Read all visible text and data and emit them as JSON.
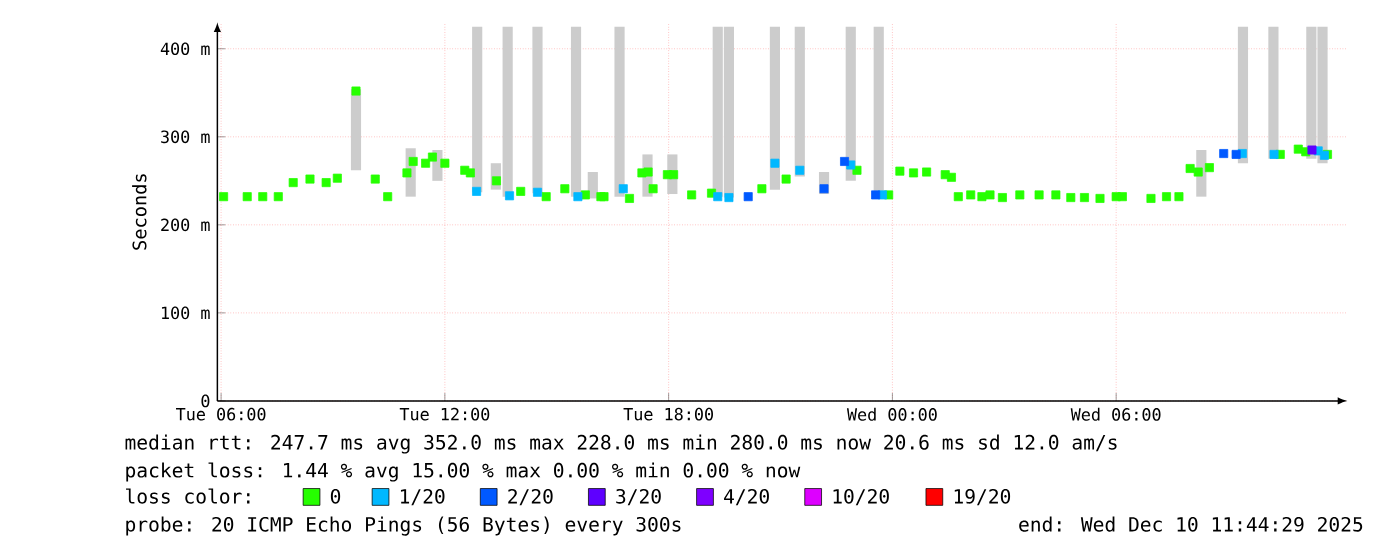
{
  "chart_data": {
    "type": "scatter",
    "ylabel": "Seconds",
    "legend_title": "loss color:",
    "annotations": [
      "median rtt:  247.7 ms avg  352.0 ms max  228.0 ms min  280.0 ms now  20.6 ms sd  12.0   am/s",
      "packet loss: 1.44 % avg  15.00 % max  0.00 % min  0.00 % now",
      "probe:       20 ICMP Echo Pings (56 Bytes) every 300s",
      "end: Wed Dec 10 11:44:29 2025"
    ],
    "xlim": [
      "2025-12-09T05:54",
      "2025-12-10T12:12"
    ],
    "ylim": [
      0,
      430
    ],
    "xticks": [
      {
        "value": "2025-12-09T06:00",
        "label": "Tue 06:00"
      },
      {
        "value": "2025-12-09T12:00",
        "label": "Tue 12:00"
      },
      {
        "value": "2025-12-09T18:00",
        "label": "Tue 18:00"
      },
      {
        "value": "2025-12-10T00:00",
        "label": "Wed 00:00"
      },
      {
        "value": "2025-12-10T06:00",
        "label": "Wed 06:00"
      }
    ],
    "yticks": [
      0,
      {
        "value": 100,
        "label": "100 m"
      },
      {
        "value": 200,
        "label": "200 m"
      },
      {
        "value": 300,
        "label": "300 m"
      },
      {
        "value": 400,
        "label": "400 m"
      }
    ],
    "grid": true,
    "legend": "bottom",
    "marker": "square",
    "series": [
      {
        "type": "bar",
        "color": "#cccccc",
        "x": [
          "2025-12-09T09:37",
          "2025-12-09T11:05",
          "2025-12-09T11:48",
          "2025-12-09T12:52",
          "2025-12-09T13:22",
          "2025-12-09T13:41",
          "2025-12-09T14:29",
          "2025-12-09T15:31",
          "2025-12-09T15:58",
          "2025-12-09T16:41",
          "2025-12-09T17:26",
          "2025-12-09T18:06",
          "2025-12-09T19:19",
          "2025-12-09T19:37",
          "2025-12-09T20:51",
          "2025-12-09T21:31",
          "2025-12-09T22:10",
          "2025-12-09T22:53",
          "2025-12-09T23:38",
          "2025-12-10T08:17",
          "2025-12-10T09:24",
          "2025-12-10T10:13",
          "2025-12-10T11:14",
          "2025-12-10T11:32"
        ],
        "base": [
          262,
          232,
          250,
          237,
          240,
          232,
          236,
          232,
          230,
          232,
          232,
          235,
          232,
          231,
          240,
          255,
          235,
          250,
          232,
          232,
          270,
          275,
          275,
          270
        ],
        "values": [
          92,
          55,
          35,
          188,
          30,
          193,
          189,
          193,
          30,
          193,
          48,
          45,
          193,
          194,
          185,
          170,
          25,
          175,
          193,
          53,
          155,
          150,
          150,
          155
        ]
      },
      {
        "name": "0",
        "color": "#26ff00",
        "x": [
          "2025-12-09T06:04",
          "2025-12-09T06:42",
          "2025-12-09T07:07",
          "2025-12-09T07:32",
          "2025-12-09T07:56",
          "2025-12-09T08:23",
          "2025-12-09T08:49",
          "2025-12-09T09:07",
          "2025-12-09T09:37",
          "2025-12-09T10:08",
          "2025-12-09T10:28",
          "2025-12-09T10:59",
          "2025-12-09T11:09",
          "2025-12-09T11:29",
          "2025-12-09T11:40",
          "2025-12-09T12:00",
          "2025-12-09T12:32",
          "2025-12-09T12:41",
          "2025-12-09T13:23",
          "2025-12-09T14:02",
          "2025-12-09T14:43",
          "2025-12-09T15:13",
          "2025-12-09T15:46",
          "2025-12-09T16:11",
          "2025-12-09T16:16",
          "2025-12-09T16:57",
          "2025-12-09T17:17",
          "2025-12-09T17:27",
          "2025-12-09T17:35",
          "2025-12-09T17:58",
          "2025-12-09T18:08",
          "2025-12-09T18:37",
          "2025-12-09T19:09",
          "2025-12-09T20:30",
          "2025-12-09T21:09",
          "2025-12-09T23:03",
          "2025-12-09T23:54",
          "2025-12-10T00:12",
          "2025-12-10T00:34",
          "2025-12-10T00:55",
          "2025-12-10T01:25",
          "2025-12-10T01:35",
          "2025-12-10T01:46",
          "2025-12-10T02:06",
          "2025-12-10T02:24",
          "2025-12-10T02:37",
          "2025-12-10T02:57",
          "2025-12-10T03:25",
          "2025-12-10T03:56",
          "2025-12-10T04:23",
          "2025-12-10T04:47",
          "2025-12-10T05:09",
          "2025-12-10T05:34",
          "2025-12-10T06:00",
          "2025-12-10T06:10",
          "2025-12-10T06:56",
          "2025-12-10T07:21",
          "2025-12-10T07:41",
          "2025-12-10T07:59",
          "2025-12-10T08:12",
          "2025-12-10T08:30",
          "2025-12-10T10:24",
          "2025-12-10T10:53",
          "2025-12-10T11:05",
          "2025-12-10T11:40"
        ],
        "values": [
          232,
          232,
          232,
          232,
          248,
          252,
          248,
          253,
          352,
          252,
          232,
          259,
          272,
          270,
          277,
          270,
          262,
          259,
          250,
          238,
          232,
          241,
          234,
          232,
          232,
          230,
          259,
          260,
          241,
          257,
          257,
          234,
          236,
          241,
          252,
          262,
          234,
          261,
          259,
          260,
          257,
          254,
          232,
          234,
          232,
          234,
          231,
          234,
          234,
          234,
          231,
          231,
          230,
          232,
          232,
          230,
          232,
          232,
          264,
          260,
          265,
          280,
          286,
          283,
          280
        ]
      },
      {
        "name": "1/20",
        "color": "#00b8ff",
        "x": [
          "2025-12-09T12:51",
          "2025-12-09T13:44",
          "2025-12-09T14:29",
          "2025-12-09T15:34",
          "2025-12-09T16:47",
          "2025-12-09T19:19",
          "2025-12-09T19:37",
          "2025-12-09T20:51",
          "2025-12-09T21:31",
          "2025-12-09T22:53",
          "2025-12-09T23:44",
          "2025-12-10T09:23",
          "2025-12-10T10:14",
          "2025-12-10T11:25",
          "2025-12-10T11:35"
        ],
        "values": [
          238,
          233,
          237,
          232,
          241,
          232,
          231,
          270,
          262,
          268,
          234,
          281,
          280,
          284,
          279
        ]
      },
      {
        "name": "2/20",
        "color": "#0059ff",
        "x": [
          "2025-12-09T20:08",
          "2025-12-09T22:10",
          "2025-12-09T22:43",
          "2025-12-09T23:33",
          "2025-12-10T08:53",
          "2025-12-10T09:13"
        ],
        "values": [
          232,
          241,
          272,
          234,
          281,
          280
        ]
      },
      {
        "name": "3/20",
        "color": "#5e00ff",
        "x": [
          "2025-12-10T11:15"
        ],
        "values": [
          285
        ]
      },
      {
        "name": "4/20",
        "color": "#7e00ff"
      },
      {
        "name": "10/20",
        "color": "#dd00ff"
      },
      {
        "name": "19/20",
        "color": "#ff0000"
      }
    ]
  }
}
